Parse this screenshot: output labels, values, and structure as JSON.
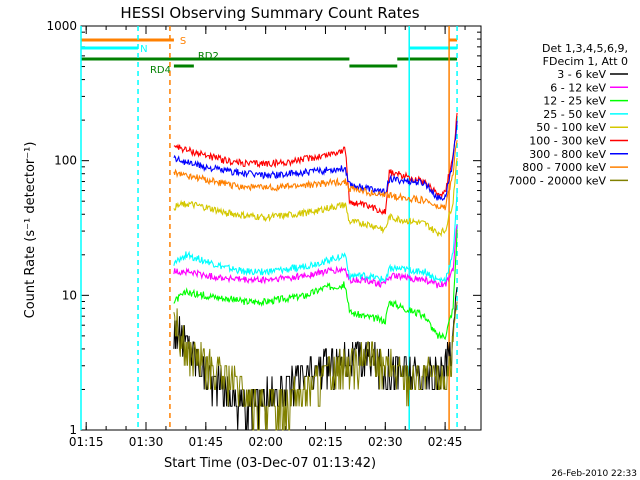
{
  "chart_data": {
    "type": "line",
    "title": "HESSI Observing Summary Count Rates",
    "xlabel": "Start Time (03-Dec-07 01:13:42)",
    "ylabel": "Count Rate (s⁻¹ detector⁻¹)",
    "yscale": "log",
    "xlim": [
      "01:13:42",
      "02:54:00"
    ],
    "ylim": [
      1,
      1000
    ],
    "x_ticks": [
      "01:15",
      "01:30",
      "01:45",
      "02:00",
      "02:15",
      "02:30",
      "02:45"
    ],
    "y_ticks": [
      "1",
      "10",
      "100",
      "1000"
    ],
    "legend": {
      "placement": "right",
      "header": [
        "Det 1,3,4,5,6,9,",
        "FDecim 1, Att 0"
      ]
    },
    "series": [
      {
        "name": "3 - 6 keV",
        "color": "#000000",
        "x": [
          "01:37",
          "01:40",
          "01:43",
          "01:46",
          "01:50",
          "01:55",
          "02:00",
          "02:05",
          "02:10",
          "02:15",
          "02:20",
          "02:25",
          "02:30",
          "02:35",
          "02:40",
          "02:43",
          "02:45",
          "02:47",
          "02:48"
        ],
        "y": [
          6,
          4.5,
          3.5,
          2.5,
          2,
          1.5,
          1.8,
          2,
          2.5,
          3,
          3.5,
          3.5,
          3,
          2.8,
          2.5,
          2.5,
          3,
          5,
          12
        ]
      },
      {
        "name": "6 - 12 keV",
        "color": "#ff00ff",
        "x": [
          "01:37",
          "01:40",
          "01:45",
          "01:50",
          "01:55",
          "02:00",
          "02:05",
          "02:10",
          "02:15",
          "02:20",
          "02:21",
          "02:25",
          "02:30",
          "02:31",
          "02:35",
          "02:40",
          "02:43",
          "02:45",
          "02:47",
          "02:48"
        ],
        "y": [
          15,
          15,
          14,
          13.5,
          13,
          13,
          13.5,
          14,
          15,
          15.5,
          13,
          13,
          12,
          14,
          13.5,
          13,
          12,
          12,
          16,
          35
        ]
      },
      {
        "name": "12 - 25 keV",
        "color": "#00ff00",
        "x": [
          "01:37",
          "01:40",
          "01:45",
          "01:50",
          "01:55",
          "02:00",
          "02:05",
          "02:10",
          "02:15",
          "02:20",
          "02:21",
          "02:25",
          "02:30",
          "02:31",
          "02:35",
          "02:40",
          "02:43",
          "02:45",
          "02:47",
          "02:48"
        ],
        "y": [
          9,
          10.5,
          10,
          9.5,
          9,
          9,
          9.5,
          10,
          11.5,
          12,
          7.5,
          7,
          6.5,
          9,
          8,
          7,
          5,
          5,
          8,
          30
        ]
      },
      {
        "name": "25 - 50 keV",
        "color": "#00ffff",
        "x": [
          "01:37",
          "01:40",
          "01:45",
          "01:50",
          "01:55",
          "02:00",
          "02:05",
          "02:10",
          "02:15",
          "02:20",
          "02:21",
          "02:25",
          "02:30",
          "02:31",
          "02:35",
          "02:40",
          "02:43",
          "02:45",
          "02:47",
          "02:48"
        ],
        "y": [
          17,
          20,
          18,
          16,
          15,
          15,
          15.5,
          16.5,
          18,
          20,
          14,
          14,
          13,
          16,
          15.5,
          15,
          13,
          13,
          20,
          60
        ]
      },
      {
        "name": "50 - 100 keV",
        "color": "#d4c800",
        "x": [
          "01:37",
          "01:40",
          "01:45",
          "01:50",
          "01:55",
          "02:00",
          "02:05",
          "02:10",
          "02:15",
          "02:20",
          "02:21",
          "02:25",
          "02:30",
          "02:31",
          "02:35",
          "02:40",
          "02:43",
          "02:45",
          "02:47",
          "02:48"
        ],
        "y": [
          45,
          48,
          45,
          41,
          39,
          38,
          39,
          41,
          44,
          47,
          35,
          34,
          31,
          38,
          36,
          34,
          29,
          30,
          50,
          110
        ]
      },
      {
        "name": "100 - 300 keV",
        "color": "#ff0000",
        "x": [
          "01:37",
          "01:40",
          "01:45",
          "01:50",
          "01:55",
          "02:00",
          "02:05",
          "02:10",
          "02:15",
          "02:20",
          "02:21",
          "02:25",
          "02:30",
          "02:31",
          "02:35",
          "02:40",
          "02:43",
          "02:45",
          "02:47",
          "02:48"
        ],
        "y": [
          130,
          120,
          110,
          100,
          95,
          95,
          97,
          103,
          110,
          120,
          50,
          46,
          42,
          82,
          77,
          70,
          57,
          58,
          110,
          220
        ]
      },
      {
        "name": "300 - 800 keV",
        "color": "#0000ff",
        "x": [
          "01:37",
          "01:40",
          "01:45",
          "01:50",
          "01:55",
          "02:00",
          "02:05",
          "02:10",
          "02:15",
          "02:20",
          "02:21",
          "02:25",
          "02:30",
          "02:31",
          "02:35",
          "02:40",
          "02:43",
          "02:45",
          "02:47",
          "02:48"
        ],
        "y": [
          105,
          98,
          90,
          84,
          80,
          78,
          79,
          82,
          85,
          88,
          67,
          63,
          58,
          73,
          71,
          68,
          53,
          53,
          100,
          200
        ]
      },
      {
        "name": "800 - 7000 keV",
        "color": "#ff8000",
        "x": [
          "01:37",
          "01:40",
          "01:45",
          "01:50",
          "01:55",
          "02:00",
          "02:05",
          "02:10",
          "02:15",
          "02:20",
          "02:21",
          "02:25",
          "02:30",
          "02:31",
          "02:35",
          "02:40",
          "02:43",
          "02:45",
          "02:47",
          "02:48"
        ],
        "y": [
          82,
          78,
          72,
          67,
          64,
          63,
          64,
          66,
          68,
          70,
          62,
          59,
          55,
          55,
          53,
          51,
          45,
          45,
          80,
          150
        ]
      },
      {
        "name": "7000 - 20000 keV",
        "color": "#808000",
        "x": [
          "01:37",
          "01:40",
          "01:45",
          "01:50",
          "01:55",
          "02:00",
          "02:05",
          "02:10",
          "02:15",
          "02:20",
          "02:25",
          "02:30",
          "02:35",
          "02:40",
          "02:43",
          "02:45",
          "02:47",
          "02:48"
        ],
        "y": [
          7,
          4,
          3,
          2.5,
          1.8,
          1.5,
          1.6,
          2,
          2.5,
          3,
          3.5,
          3,
          2.5,
          2.5,
          2.5,
          2.5,
          4,
          8
        ]
      }
    ],
    "flag_bars": [
      {
        "label": "S",
        "color": "#ff8000",
        "segments": [
          [
            "01:13:42",
            "01:37"
          ],
          [
            "02:46",
            "02:48"
          ]
        ]
      },
      {
        "label": "N",
        "color": "#00ffff",
        "segments": [
          [
            "01:13:42",
            "01:28"
          ],
          [
            "02:36",
            "02:48"
          ]
        ]
      },
      {
        "label": "RD4",
        "color": "#008000",
        "segments": [
          [
            "01:37",
            "01:42"
          ]
        ]
      },
      {
        "label": "RD2",
        "color": "#008000",
        "segments": [
          [
            "01:13:42",
            "02:21"
          ],
          [
            "02:21",
            "02:33"
          ],
          [
            "02:33",
            "02:48"
          ]
        ]
      }
    ],
    "vertical_lines": [
      {
        "x": "01:13:42",
        "color": "#00ffff",
        "style": "solid"
      },
      {
        "x": "01:28",
        "color": "#00ffff",
        "style": "dashed"
      },
      {
        "x": "01:36",
        "color": "#ff8000",
        "style": "dashed"
      },
      {
        "x": "02:36",
        "color": "#00ffff",
        "style": "solid"
      },
      {
        "x": "02:46",
        "color": "#ff8000",
        "style": "solid"
      },
      {
        "x": "02:48",
        "color": "#00ffff",
        "style": "dashed"
      }
    ]
  },
  "footer": {
    "timestamp": "26-Feb-2010 22:33"
  }
}
